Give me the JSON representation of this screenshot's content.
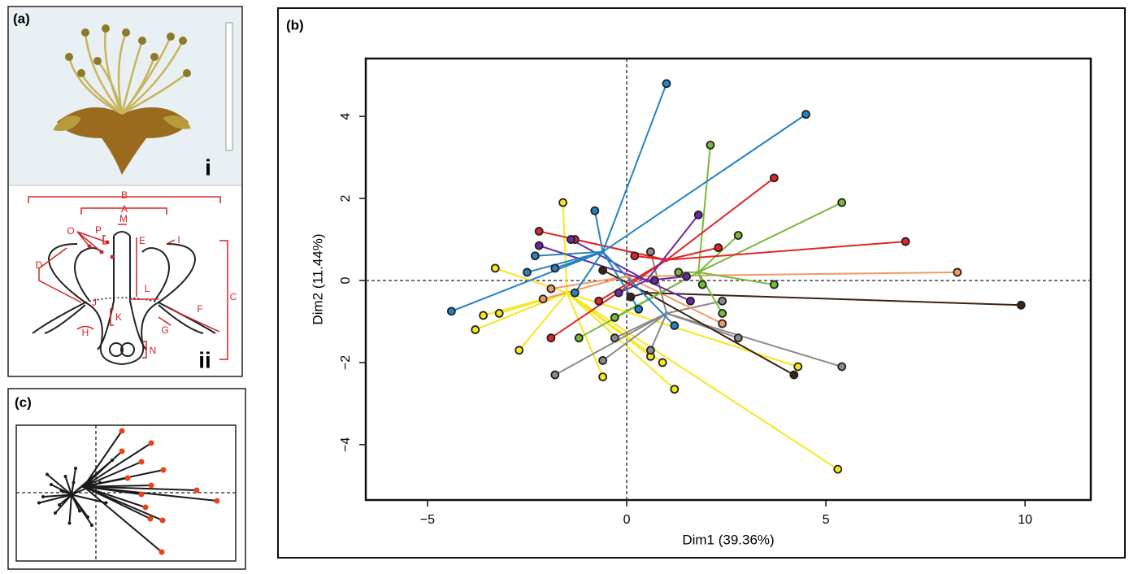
{
  "panel_a": {
    "label": "(a)",
    "photo_label": "i",
    "diagram_label": "ii",
    "letters": [
      "B",
      "A",
      "M",
      "P",
      "O",
      "E",
      "I",
      "D",
      "J",
      "L",
      "C",
      "K",
      "F",
      "H",
      "G",
      "N"
    ]
  },
  "chart_data": [
    {
      "type": "scatter",
      "panel_label": "(b)",
      "x_label": "Dim1 (39.36%)",
      "y_label": "Dim2 (11.44%)",
      "xlim": [
        -6.55,
        11.65
      ],
      "ylim": [
        -5.35,
        5.41
      ],
      "xticks": [
        {
          "value": -5,
          "label": "−5"
        },
        0,
        5,
        10
      ],
      "yticks": [
        {
          "value": -4,
          "label": "−4"
        },
        {
          "value": -2,
          "label": "−2"
        },
        0,
        2,
        4
      ],
      "zero_lines": true,
      "groups": [
        {
          "color": "#f7e81c",
          "center_x": -1.5,
          "center_y": -0.3,
          "x": [
            5.3,
            4.3,
            -3.8,
            -3.6,
            -2.7,
            -0.6,
            1.2,
            -1.6,
            -3.3,
            -3.2,
            0.6,
            0.9
          ],
          "y": [
            -4.6,
            -2.1,
            -1.2,
            -0.85,
            -1.7,
            -2.35,
            -2.65,
            1.9,
            0.3,
            -0.8,
            -1.85,
            -2.0
          ]
        },
        {
          "color": "#8a8a8a",
          "center_x": 1.0,
          "center_y": -0.8,
          "x": [
            -1.8,
            5.4,
            2.8,
            -0.3,
            -0.6,
            0.6,
            2.4,
            0.6
          ],
          "y": [
            -2.3,
            -2.1,
            -1.4,
            -1.4,
            -1.95,
            -1.7,
            -0.5,
            0.7
          ]
        },
        {
          "color": "#f29866",
          "center_x": 0.0,
          "center_y": 0.1,
          "x": [
            8.3,
            2.4,
            -2.1,
            -1.9
          ],
          "y": [
            0.2,
            -1.05,
            -0.45,
            -0.2
          ]
        },
        {
          "color": "#3d2314",
          "center_x": 0.5,
          "center_y": -0.3,
          "x": [
            9.9,
            4.2,
            -0.6,
            0.1
          ],
          "y": [
            -0.6,
            -2.3,
            0.25,
            -0.4
          ]
        },
        {
          "color": "#7ab93a",
          "center_x": 1.8,
          "center_y": 0.2,
          "x": [
            2.1,
            5.4,
            2.8,
            3.7,
            2.4,
            1.9,
            -1.2,
            -0.3,
            1.3
          ],
          "y": [
            3.3,
            1.9,
            1.1,
            -0.1,
            -0.8,
            -0.1,
            -1.4,
            -0.9,
            0.2
          ]
        },
        {
          "color": "#e0262a",
          "center_x": 1.0,
          "center_y": 0.5,
          "x": [
            7.0,
            3.7,
            2.3,
            -1.9,
            -2.2,
            -0.7,
            0.2,
            -1.3
          ],
          "y": [
            0.95,
            2.5,
            0.8,
            -1.4,
            1.2,
            -0.5,
            0.6,
            1.0
          ]
        },
        {
          "color": "#6a2aa0",
          "center_x": 0.5,
          "center_y": 0.0,
          "x": [
            1.8,
            1.6,
            -2.2,
            -1.4,
            0.7,
            1.5,
            -0.2
          ],
          "y": [
            1.6,
            -0.5,
            0.85,
            1.0,
            0.0,
            0.1,
            -0.3
          ]
        },
        {
          "color": "#2383c4",
          "center_x": -0.6,
          "center_y": 0.7,
          "x": [
            1.0,
            4.5,
            -4.4,
            -2.3,
            -1.8,
            0.3,
            1.2,
            -1.3,
            -0.8,
            -2.5
          ],
          "y": [
            4.8,
            4.05,
            -0.75,
            0.6,
            0.3,
            -0.7,
            -1.1,
            -0.3,
            1.7,
            0.2
          ]
        }
      ]
    },
    {
      "type": "scatter",
      "panel_label": "(c)",
      "xlim": [
        -3.92,
        6.88
      ],
      "ylim": [
        -3.36,
        3.32
      ],
      "zero_lines": true,
      "groups": [
        {
          "color": "#1a1a1a",
          "point_color": "#e8431a",
          "center_x": -0.6,
          "center_y": 0.3,
          "x": [
            1.28,
            2.72,
            1.28,
            2.24,
            3.32,
            1.56,
            2.72,
            4.96,
            2.24,
            5.96,
            2.44,
            2.68,
            3.28,
            3.24
          ],
          "y": [
            3.04,
            2.44,
            2.04,
            1.52,
            1.12,
            0.72,
            0.36,
            0.12,
            -0.08,
            -0.4,
            -0.72,
            -1.28,
            -1.36,
            -2.92
          ]
        },
        {
          "color": "#1a1a1a",
          "point_color": "#1a1a1a",
          "center_x": -1.2,
          "center_y": -0.1,
          "x": [
            -2.2,
            -1.8,
            -2.6,
            -1.5,
            -0.8,
            -2.0,
            0.2,
            -0.4,
            -2.4,
            -1.0,
            0.5,
            -1.7,
            -0.3,
            -2.8,
            -1.3,
            0.8,
            -0.2,
            -1.1
          ],
          "y": [
            0.4,
            -0.6,
            -0.2,
            0.8,
            -0.9,
            -1.0,
            0.5,
            -1.2,
            0.9,
            1.2,
            -0.5,
            0.1,
            0.6,
            -0.5,
            -1.5,
            1.6,
            -1.6,
            0.5
          ]
        }
      ]
    }
  ]
}
